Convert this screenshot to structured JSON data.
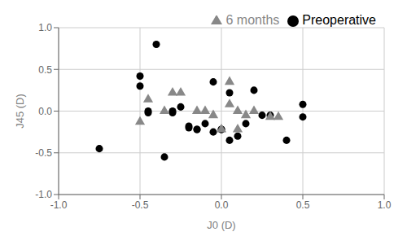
{
  "chart_data": {
    "type": "scatter",
    "x_label": "J0 (D)",
    "y_label": "J45 (D)",
    "xlim": [
      -1.0,
      1.0
    ],
    "ylim": [
      -1.0,
      1.0
    ],
    "xticks": [
      {
        "value": -1.0,
        "label": "-1.0"
      },
      -0.5,
      {
        "value": 0.0,
        "label": "0.0"
      },
      0.5,
      {
        "value": 1.0,
        "label": "1.0"
      }
    ],
    "yticks": [
      {
        "value": -1.0,
        "label": "-1.0"
      },
      -0.5,
      {
        "value": 0.0,
        "label": "0.0"
      },
      0.5,
      {
        "value": 1.0,
        "label": "1.0"
      }
    ],
    "grid": true,
    "legend": "upper right",
    "series": [
      {
        "name": "Preoperative",
        "color": "#000000",
        "marker": "circle",
        "x": [
          -0.75,
          -0.5,
          -0.5,
          -0.45,
          -0.45,
          -0.4,
          -0.35,
          -0.3,
          -0.3,
          -0.25,
          -0.2,
          -0.2,
          -0.15,
          -0.15,
          -0.1,
          -0.05,
          -0.05,
          0.0,
          0.0,
          0.05,
          0.05,
          0.1,
          0.15,
          0.2,
          0.25,
          0.3,
          0.4,
          0.5,
          0.5
        ],
        "values": [
          -0.45,
          0.42,
          0.3,
          0.0,
          -0.02,
          0.8,
          -0.55,
          0.0,
          -0.02,
          0.05,
          -0.18,
          -0.2,
          -0.22,
          -0.22,
          -0.15,
          0.35,
          -0.25,
          -0.22,
          -0.22,
          -0.35,
          0.22,
          -0.3,
          -0.15,
          0.25,
          -0.05,
          -0.05,
          -0.35,
          0.08,
          -0.07
        ]
      },
      {
        "name": "6 months",
        "color": "#888888",
        "marker": "triangle",
        "x": [
          -0.5,
          -0.45,
          -0.35,
          -0.3,
          -0.25,
          -0.15,
          -0.1,
          -0.05,
          0.0,
          0.05,
          0.05,
          0.1,
          0.1,
          0.15,
          0.2,
          0.3,
          0.35
        ],
        "values": [
          -0.13,
          0.14,
          0.0,
          0.22,
          0.22,
          0.0,
          0.0,
          -0.05,
          -0.22,
          0.35,
          0.08,
          -0.22,
          0.0,
          -0.05,
          0.0,
          -0.07,
          -0.07
        ]
      }
    ]
  }
}
